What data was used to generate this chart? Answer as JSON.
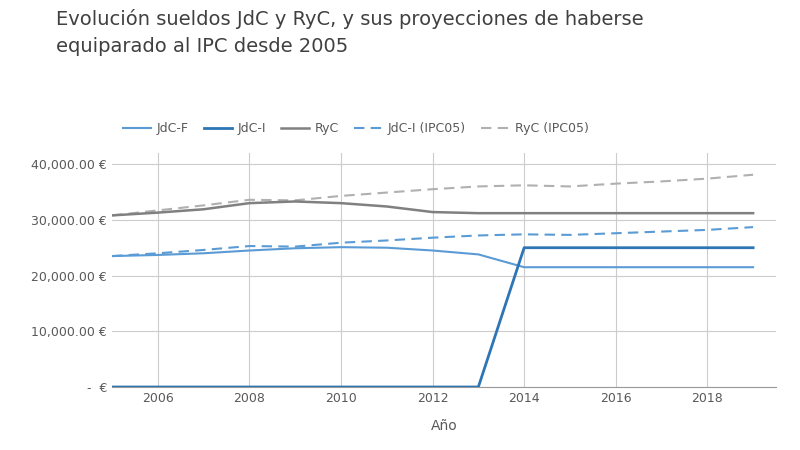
{
  "title": "Evolución sueldos JdC y RyC, y sus proyecciones de haberse\nequiparado al IPC desde 2005",
  "xlabel": "Año",
  "background_color": "#ffffff",
  "grid_color": "#cccccc",
  "years": [
    2005,
    2006,
    2007,
    2008,
    2009,
    2010,
    2011,
    2012,
    2013,
    2014,
    2015,
    2016,
    2017,
    2018,
    2019
  ],
  "JdC_F": [
    23500,
    23700,
    24000,
    24500,
    24900,
    25100,
    25000,
    24500,
    23800,
    21500,
    21500,
    21500,
    21500,
    21500,
    21500
  ],
  "JdC_I": [
    0,
    0,
    0,
    0,
    0,
    0,
    0,
    0,
    0,
    25000,
    25000,
    25000,
    25000,
    25000,
    25000
  ],
  "RyC": [
    30800,
    31300,
    31900,
    33000,
    33300,
    33000,
    32400,
    31400,
    31200,
    31200,
    31200,
    31200,
    31200,
    31200,
    31200
  ],
  "JdC_IPC05": [
    23500,
    24000,
    24600,
    25300,
    25200,
    25900,
    26300,
    26800,
    27200,
    27400,
    27300,
    27600,
    27900,
    28200,
    28700
  ],
  "RyC_IPC05": [
    30800,
    31700,
    32600,
    33600,
    33500,
    34300,
    34900,
    35500,
    36000,
    36200,
    36000,
    36500,
    36900,
    37400,
    38100
  ],
  "JdC_F_color": "#5B9BD5",
  "JdC_I_color": "#2E75B6",
  "RyC_color": "#808080",
  "JdC_IPC05_color": "#5B9BD5",
  "RyC_IPC05_color": "#b0b0b0",
  "title_fontsize": 14,
  "legend_fontsize": 9,
  "axis_fontsize": 9,
  "ylim": [
    0,
    42000
  ],
  "yticks": [
    0,
    10000,
    20000,
    30000,
    40000
  ],
  "xticks": [
    2006,
    2008,
    2010,
    2012,
    2014,
    2016,
    2018
  ]
}
